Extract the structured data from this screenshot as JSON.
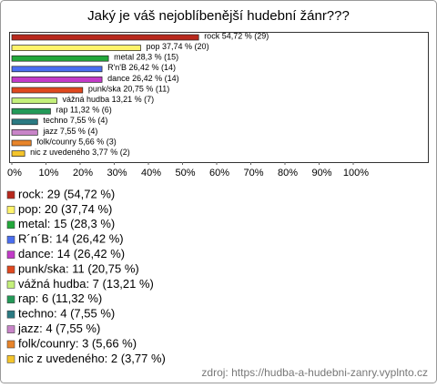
{
  "chart_data": {
    "type": "bar",
    "orientation": "horizontal",
    "title": "Jaký je váš nejoblíbenější hudební žánr???",
    "values": [
      54.72,
      37.74,
      28.3,
      26.42,
      26.42,
      20.75,
      13.21,
      11.32,
      7.55,
      7.55,
      5.66,
      3.77
    ],
    "value_labels": [
      "rock 54,72 % (29)",
      "pop 37,74 % (20)",
      "metal 28,3 % (15)",
      "R'n'B 26,42 % (14)",
      "dance 26,42 % (14)",
      "punk/ska 20,75 % (11)",
      "vážná hudba 13,21 % (7)",
      "rap 11,32 % (6)",
      "techno 7,55 % (4)",
      "jazz 7,55 % (4)",
      "folk/counry 5,66 % (3)",
      "nic z uvedeného 3,77 % (2)"
    ],
    "colors": [
      "#b8281c",
      "#fff36a",
      "#22a83a",
      "#4a6ef0",
      "#c23bc8",
      "#e0481e",
      "#c4f07a",
      "#239a58",
      "#2a7a82",
      "#c884c8",
      "#e8842a",
      "#f4c42a"
    ],
    "legend_labels": [
      "rock: 29 (54,72 %)",
      "pop: 20 (37,74 %)",
      "metal: 15 (28,3 %)",
      "R´n´B: 14 (26,42 %)",
      "dance: 14 (26,42 %)",
      "punk/ska: 11 (20,75 %)",
      "vážná hudba: 7 (13,21 %)",
      "rap: 6 (11,32 %)",
      "techno: 4 (7,55 %)",
      "jazz: 4 (7,55 %)",
      "folk/counry: 3 (5,66 %)",
      "nic z uvedeného: 2 (3,77 %)"
    ],
    "xlim": [
      0,
      100
    ],
    "xticks": [
      {
        "value": 0,
        "label": "0%"
      },
      {
        "value": 10,
        "label": "10%"
      },
      {
        "value": 20,
        "label": "20%"
      },
      {
        "value": 30,
        "label": "30%"
      },
      {
        "value": 40,
        "label": "40%"
      },
      {
        "value": 50,
        "label": "50%"
      },
      {
        "value": 60,
        "label": "60%"
      },
      {
        "value": 70,
        "label": "70%"
      },
      {
        "value": 80,
        "label": "80%"
      },
      {
        "value": 90,
        "label": "90%"
      },
      {
        "value": 100,
        "label": "100%"
      }
    ],
    "source": "zdroj: https://hudba-a-hudebni-zanry.vyplnto.cz"
  }
}
